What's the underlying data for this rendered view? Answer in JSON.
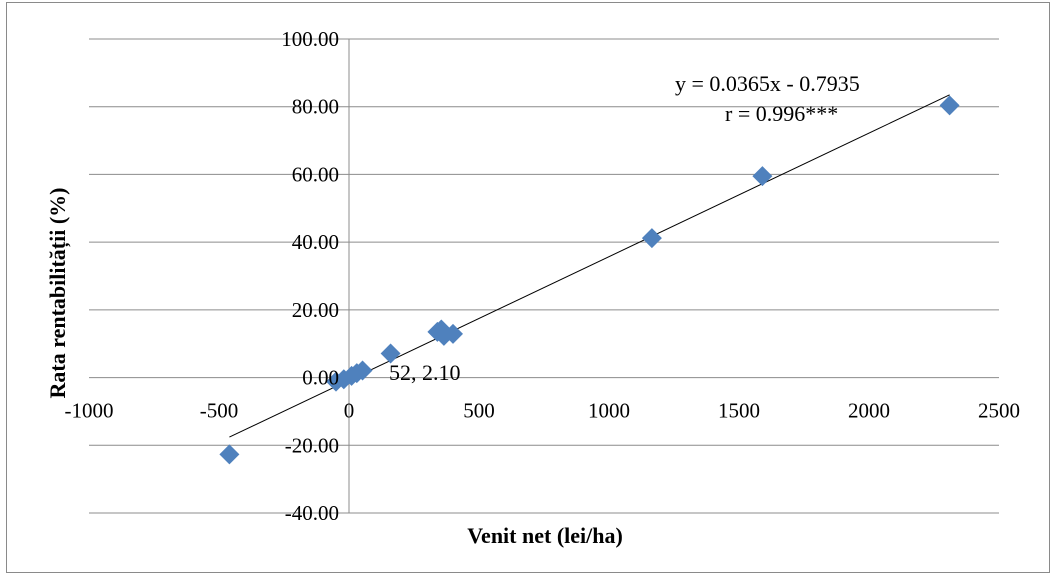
{
  "chart_data": {
    "type": "scatter",
    "title": "",
    "xlabel": "Venit net (lei/ha)",
    "ylabel": "Rata rentabilității (%)",
    "xlim": [
      -1000,
      2500
    ],
    "ylim": [
      -40,
      100
    ],
    "x_ticks": [
      -1000,
      -500,
      0,
      500,
      1000,
      1500,
      2000,
      2500
    ],
    "y_ticks": [
      -40,
      -20,
      0,
      20,
      40,
      60,
      80,
      100
    ],
    "x_tick_labels": [
      "-1000",
      "-500",
      "0",
      "500",
      "1000",
      "1500",
      "2000",
      "2500"
    ],
    "y_tick_labels": [
      "-40.00",
      "-20.00",
      "0.00",
      "20.00",
      "40.00",
      "60.00",
      "80.00",
      "100.00"
    ],
    "grid": "horizontal",
    "marker_color": "#4f81bd",
    "trendline_color": "#000000",
    "series": [
      {
        "points": [
          {
            "x": -460,
            "y": -22.7
          },
          {
            "x": -50,
            "y": -1.2
          },
          {
            "x": -20,
            "y": -0.5
          },
          {
            "x": 10,
            "y": 0.5
          },
          {
            "x": 30,
            "y": 1.3
          },
          {
            "x": 52,
            "y": 2.1
          },
          {
            "x": 160,
            "y": 7.1
          },
          {
            "x": 340,
            "y": 13.5
          },
          {
            "x": 355,
            "y": 14.2
          },
          {
            "x": 365,
            "y": 12.3
          },
          {
            "x": 400,
            "y": 12.9
          },
          {
            "x": 1165,
            "y": 41.2
          },
          {
            "x": 1590,
            "y": 59.5
          },
          {
            "x": 2310,
            "y": 80.4
          }
        ]
      }
    ],
    "trendline": {
      "slope": 0.0365,
      "intercept": -0.7935,
      "x_range": [
        -460,
        2310
      ]
    },
    "annotations": {
      "equation": "y = 0.0365x - 0.7935",
      "correlation": "r = 0.996***",
      "point_label": "52, 2.10"
    }
  }
}
